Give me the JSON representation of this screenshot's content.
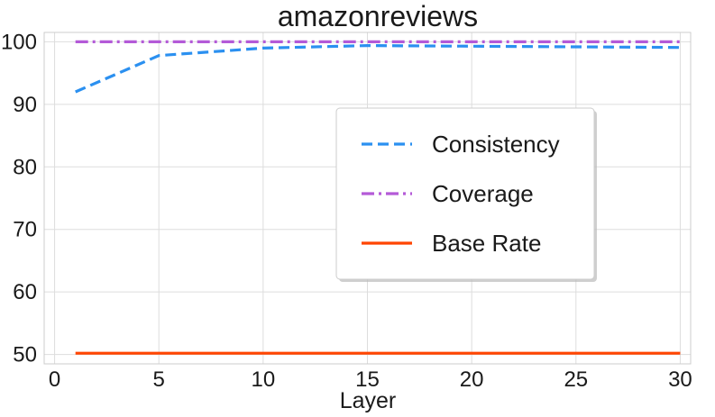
{
  "chart_data": {
    "type": "line",
    "title": "amazonreviews",
    "xlabel": "Layer",
    "ylabel": "",
    "xlim": [
      -0.5,
      30.5
    ],
    "ylim": [
      48.5,
      101.5
    ],
    "xticks": [
      0,
      5,
      10,
      15,
      20,
      25,
      30
    ],
    "yticks": [
      50,
      60,
      70,
      80,
      90,
      100
    ],
    "grid": true,
    "legend_position": "center-right",
    "series": [
      {
        "name": "Consistency",
        "style": "dashed",
        "color": "#2b90f0",
        "x": [
          1,
          5,
          10,
          15,
          20,
          25,
          30
        ],
        "y": [
          92.0,
          97.8,
          99.0,
          99.4,
          99.3,
          99.2,
          99.1
        ]
      },
      {
        "name": "Coverage",
        "style": "dashdot",
        "color": "#b45ad8",
        "x": [
          1,
          30
        ],
        "y": [
          100,
          100
        ]
      },
      {
        "name": "Base Rate",
        "style": "solid",
        "color": "#ff4500",
        "x": [
          1,
          30
        ],
        "y": [
          50.2,
          50.2
        ]
      }
    ]
  }
}
